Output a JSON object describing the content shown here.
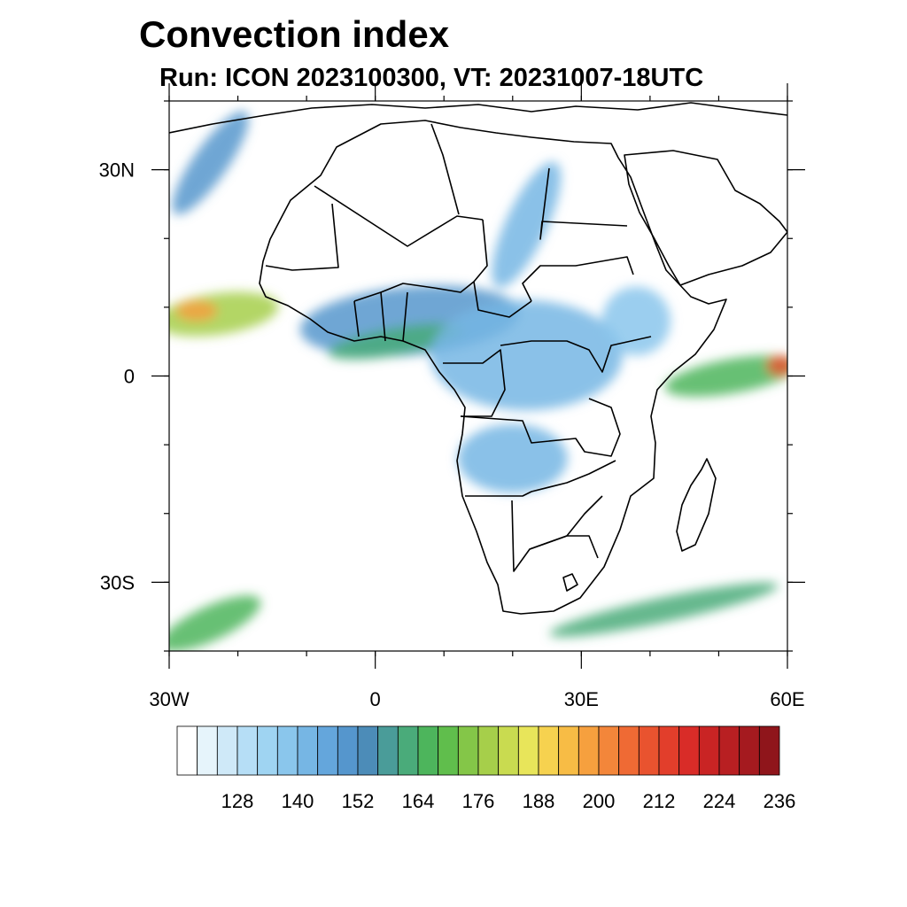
{
  "title": "Convection index",
  "subtitle": "Run: ICON 2023100300,  VT: 20231007-18UTC",
  "map": {
    "lon_range": [
      -30,
      60
    ],
    "lat_range": [
      -40,
      40
    ],
    "lon_ticks": [
      {
        "value": -30,
        "label": "30W"
      },
      {
        "value": 0,
        "label": "0"
      },
      {
        "value": 30,
        "label": "30E"
      },
      {
        "value": 60,
        "label": "60E"
      }
    ],
    "lat_ticks": [
      {
        "value": 30,
        "label": "30N"
      },
      {
        "value": 0,
        "label": "0"
      },
      {
        "value": -30,
        "label": "30S"
      }
    ],
    "field_variable": "Convection index"
  },
  "colorbar": {
    "levels": [
      116,
      120,
      124,
      128,
      132,
      136,
      140,
      144,
      148,
      152,
      156,
      160,
      164,
      168,
      172,
      176,
      180,
      184,
      188,
      192,
      196,
      200,
      204,
      208,
      212,
      216,
      220,
      224,
      228,
      232,
      236,
      240
    ],
    "colors": [
      "#ffffff",
      "#e6f4fb",
      "#cfe9f8",
      "#b6def6",
      "#9fd4f2",
      "#8ac6ec",
      "#76b6e4",
      "#64a6dc",
      "#5596cd",
      "#4c8cb8",
      "#4a9c99",
      "#4aab7a",
      "#4db55c",
      "#60be4c",
      "#84c648",
      "#a6cf4a",
      "#c9db50",
      "#e8e55a",
      "#f6d24f",
      "#f7bc45",
      "#f6a03e",
      "#f3863a",
      "#ef6a34",
      "#e9532f",
      "#e23e2b",
      "#d92c28",
      "#c92424",
      "#b81f22",
      "#a51a1f",
      "#8f151b"
    ],
    "labels": [
      {
        "value": 128,
        "label": "128"
      },
      {
        "value": 140,
        "label": "140"
      },
      {
        "value": 152,
        "label": "152"
      },
      {
        "value": 164,
        "label": "164"
      },
      {
        "value": 176,
        "label": "176"
      },
      {
        "value": 188,
        "label": "188"
      },
      {
        "value": 200,
        "label": "200"
      },
      {
        "value": 212,
        "label": "212"
      },
      {
        "value": 224,
        "label": "224"
      },
      {
        "value": 236,
        "label": "236"
      }
    ]
  },
  "field_regions": [
    {
      "name": "itcz-atlantic",
      "lon": -23,
      "lat": 9,
      "rx": 9,
      "ry": 3,
      "angle": -8,
      "value": 176
    },
    {
      "name": "itcz-atlantic-core",
      "lon": -26,
      "lat": 9.5,
      "rx": 3,
      "ry": 1.5,
      "angle": 0,
      "value": 196
    },
    {
      "name": "west-africa-band",
      "lon": 5,
      "lat": 8,
      "rx": 16,
      "ry": 5,
      "angle": -5,
      "value": 148
    },
    {
      "name": "gulf-of-guinea",
      "lon": 3,
      "lat": 5,
      "rx": 10,
      "ry": 2,
      "angle": -10,
      "value": 160
    },
    {
      "name": "central-africa",
      "lon": 22,
      "lat": 3,
      "rx": 14,
      "ry": 8,
      "angle": 0,
      "value": 140
    },
    {
      "name": "sudan-band",
      "lon": 22,
      "lat": 22,
      "rx": 3,
      "ry": 10,
      "angle": 25,
      "value": 140
    },
    {
      "name": "ethiopia",
      "lon": 38,
      "lat": 8,
      "rx": 5,
      "ry": 5,
      "angle": 0,
      "value": 136
    },
    {
      "name": "angola-zambia",
      "lon": 20,
      "lat": -12,
      "rx": 8,
      "ry": 5,
      "angle": 0,
      "value": 140
    },
    {
      "name": "east-africa-coast",
      "lon": 52,
      "lat": 0,
      "rx": 10,
      "ry": 2.5,
      "angle": -10,
      "value": 164
    },
    {
      "name": "indian-ocean-core",
      "lon": 59,
      "lat": 1.5,
      "rx": 2,
      "ry": 1.5,
      "angle": 0,
      "value": 208
    },
    {
      "name": "atlantic-nw",
      "lon": -24,
      "lat": 31,
      "rx": 2.5,
      "ry": 9,
      "angle": 35,
      "value": 148
    },
    {
      "name": "south-africa-front",
      "lon": 42,
      "lat": -34,
      "rx": 17,
      "ry": 1.8,
      "angle": -12,
      "value": 160
    },
    {
      "name": "sw-atlantic-front",
      "lon": -24,
      "lat": -36,
      "rx": 8,
      "ry": 2.5,
      "angle": -25,
      "value": 164
    }
  ]
}
